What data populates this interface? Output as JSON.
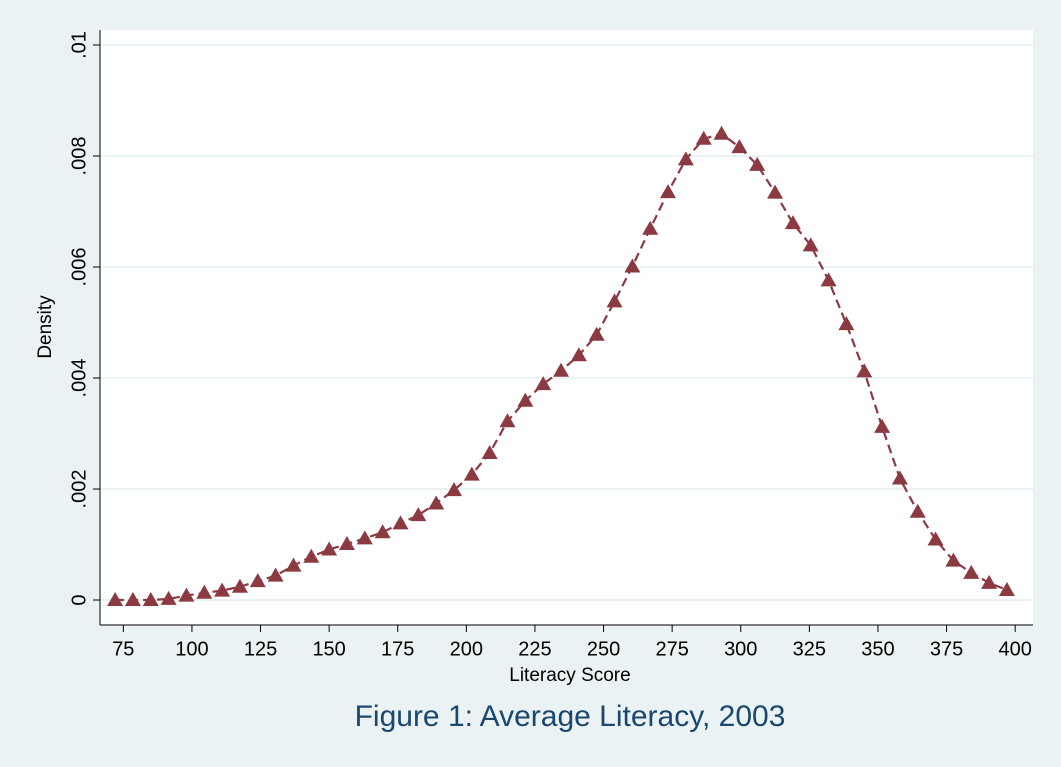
{
  "chart_data": {
    "type": "line",
    "title": "Figure 1: Average Literacy, 2003",
    "xlabel": "Literacy Score",
    "ylabel": "Density",
    "color": "#8b3a42",
    "marker": "triangle",
    "line_style": "dashed",
    "grid": true,
    "x": [
      72,
      78.5,
      85,
      91.5,
      98,
      104.5,
      111,
      117.5,
      124,
      130.5,
      137,
      143.5,
      150,
      156.5,
      163,
      169.5,
      176,
      182.5,
      189,
      195.5,
      202,
      208.5,
      215,
      221.5,
      228,
      234.5,
      241,
      247.5,
      254,
      260.5,
      267,
      273.5,
      280,
      286.5,
      293,
      299.5,
      306,
      312.5,
      319,
      325.5,
      332,
      338.5,
      345,
      351.5,
      358,
      364.5,
      371,
      377.5,
      384,
      390.5,
      397
    ],
    "values": [
      0,
      0,
      0,
      2e-05,
      8e-05,
      0.00013,
      0.00017,
      0.00024,
      0.00034,
      0.00044,
      0.00062,
      0.00078,
      0.00091,
      0.00101,
      0.00111,
      0.00122,
      0.00138,
      0.00153,
      0.00174,
      0.00198,
      0.00226,
      0.00265,
      0.00322,
      0.00359,
      0.00389,
      0.00413,
      0.00441,
      0.00478,
      0.00538,
      0.00601,
      0.00669,
      0.00735,
      0.00794,
      0.00831,
      0.0084,
      0.00816,
      0.00784,
      0.00734,
      0.00679,
      0.00639,
      0.00576,
      0.00497,
      0.00412,
      0.00312,
      0.00219,
      0.00159,
      0.00109,
      0.00071,
      0.00049,
      0.00031,
      0.00018
    ],
    "xlim": [
      66.5,
      406.5
    ],
    "xticks": [
      75,
      100,
      125,
      150,
      175,
      200,
      225,
      250,
      275,
      300,
      325,
      350,
      375,
      400
    ],
    "ylim": [
      -0.00045,
      0.01027
    ],
    "yticks": [
      0,
      {
        "value": 0.002,
        "label": ".002"
      },
      {
        "value": 0.004,
        "label": ".004"
      },
      {
        "value": 0.006,
        "label": ".006"
      },
      {
        "value": 0.008,
        "label": ".008"
      },
      {
        "value": 0.01,
        "label": ".01"
      }
    ]
  }
}
